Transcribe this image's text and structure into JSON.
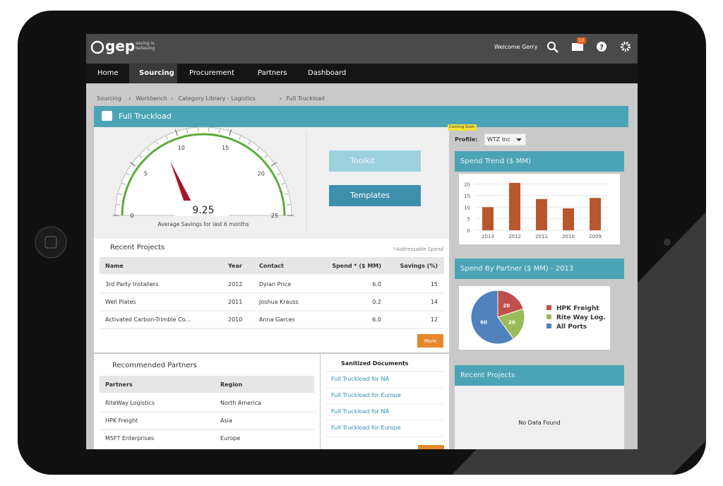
{
  "header": {
    "logo": "gep",
    "tagline": "saving is believing",
    "welcome": "Welcome Gerry",
    "badge": "12"
  },
  "nav": [
    "Home",
    "Sourcing",
    "Procurement",
    "Partners",
    "Dashboard"
  ],
  "breadcrumb": [
    "Sourcing",
    "Workbench",
    "Category Library - Logistics",
    "Full Truckload"
  ],
  "page_title": "Full Truckload",
  "gauge": {
    "value": 9.25,
    "range": [
      0,
      25
    ],
    "ticks": [
      0,
      5,
      10,
      15,
      20,
      25
    ],
    "caption": "Average Savings for last 6 months"
  },
  "buttons": [
    "Toolkit",
    "Templates"
  ],
  "recent_projects": {
    "title": "Recent Projects",
    "note": "*Addressable Spend",
    "columns": [
      "Name",
      "Year",
      "Contact",
      "Spend * ($ MM)",
      "Savings (%)"
    ],
    "rows": [
      [
        "3rd Party Installers",
        "2012",
        "Dylan Price",
        "6.0",
        "15"
      ],
      [
        "Well Plates",
        "2011",
        "Joshua Krauss",
        "0.2",
        "14"
      ],
      [
        "Activated Carbon-Trimble Co...",
        "2010",
        "Anna Garces",
        "6.0",
        "12"
      ]
    ],
    "more": "More"
  },
  "recommended_partners": {
    "title": "Recommended Partners",
    "columns": [
      "Partners",
      "Region"
    ],
    "rows": [
      [
        "RiteWay Logistics",
        "North America"
      ],
      [
        "HPK Freight",
        "Asia"
      ],
      [
        "MSFT Enterprises",
        "Europe"
      ]
    ]
  },
  "sanitized_documents": {
    "title": "Sanitized Documents",
    "items": [
      "Full Truckload for NA",
      "Full Truckload for Europe",
      "Full Truckload for NA",
      "Full Truckload for Europe"
    ]
  },
  "coming_soon": "Coming Soon",
  "profile_label": "Profile:",
  "profile_value": "WTZ Inc",
  "spend_trend": {
    "type": "bar",
    "title": "Spend Trend ($ MM)",
    "categories": [
      "2013",
      "2012",
      "2011",
      "2010",
      "2009"
    ],
    "values": [
      10,
      20.5,
      13.5,
      9.5,
      14
    ],
    "color": "#b8562f",
    "ylim": [
      0,
      22
    ],
    "yticks": [
      0,
      5,
      10,
      15,
      20
    ],
    "grid": true
  },
  "spend_by_partner": {
    "type": "pie",
    "title": "Spend By Partner ($ MM) - 2013",
    "categories": [
      "HPK Freight",
      "Rite Way Log.",
      "All Ports"
    ],
    "values": [
      20,
      20,
      60
    ],
    "colors": [
      "#c0504d",
      "#9bbb59",
      "#4f81bd"
    ]
  },
  "recent_projects_right": {
    "title": "Recent Projects",
    "empty": "No Data Found"
  }
}
